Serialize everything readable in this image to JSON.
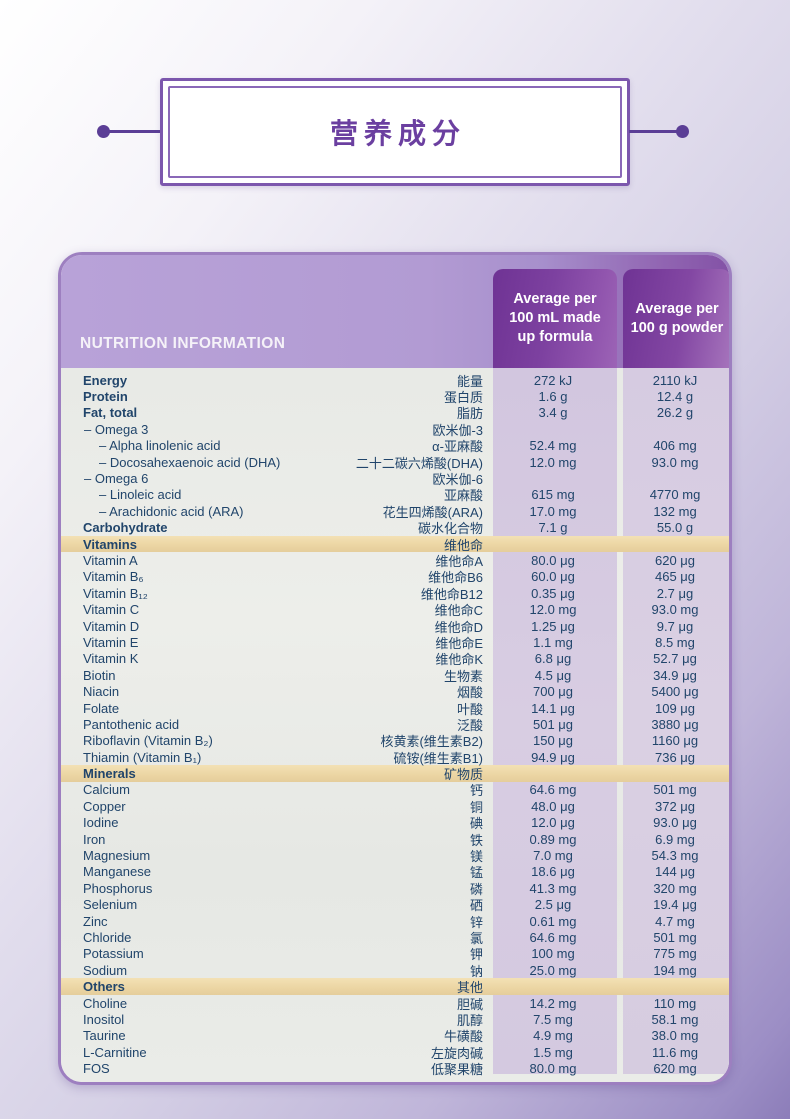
{
  "title": {
    "text": "营养成分"
  },
  "colors": {
    "accent_purple": "#6b3fa0",
    "connector_purple": "#5b3e96",
    "card_border": "#9d7fc0",
    "header_band": "#b29bd3",
    "header_cell": "#7d41a0",
    "section_band": "#ecd6a4",
    "value_strip": "#d5cae1",
    "body_bg": "#e9ebe7",
    "text_navy": "#21456b"
  },
  "table": {
    "header": {
      "title": "NUTRITION INFORMATION",
      "col_100ml": "Average per\n100 mL made\nup formula",
      "col_100g": "Average per\n100 g powder"
    },
    "rows": [
      {
        "type": "bold",
        "en": "Energy",
        "zh": "能量",
        "v1": "272 kJ",
        "v2": "2110 kJ"
      },
      {
        "type": "bold",
        "en": "Protein",
        "zh": "蛋白质",
        "v1": "1.6 g",
        "v2": "12.4 g"
      },
      {
        "type": "bold",
        "en": "Fat, total",
        "zh": "脂肪",
        "v1": "3.4 g",
        "v2": "26.2 g"
      },
      {
        "type": "sub1",
        "en": "– Omega 3",
        "zh": "欧米伽-3",
        "v1": "",
        "v2": ""
      },
      {
        "type": "sub2",
        "en": "– Alpha linolenic acid",
        "zh": "α-亚麻酸",
        "v1": "52.4 mg",
        "v2": "406 mg"
      },
      {
        "type": "sub2",
        "en": "– Docosahexaenoic acid (DHA)",
        "zh": "二十二碳六烯酸(DHA)",
        "v1": "12.0 mg",
        "v2": "93.0 mg"
      },
      {
        "type": "sub1",
        "en": "– Omega 6",
        "zh": "欧米伽-6",
        "v1": "",
        "v2": ""
      },
      {
        "type": "sub2",
        "en": "– Linoleic acid",
        "zh": "亚麻酸",
        "v1": "615 mg",
        "v2": "4770 mg"
      },
      {
        "type": "sub2",
        "en": "– Arachidonic acid (ARA)",
        "zh": "花生四烯酸(ARA)",
        "v1": "17.0 mg",
        "v2": "132 mg"
      },
      {
        "type": "bold",
        "en": "Carbohydrate",
        "zh": "碳水化合物",
        "v1": "7.1 g",
        "v2": "55.0 g"
      },
      {
        "type": "section",
        "en": "Vitamins",
        "zh": "维他命",
        "v1": "",
        "v2": ""
      },
      {
        "type": "item",
        "en": "Vitamin A",
        "zh": "维他命A",
        "v1": "80.0 μg",
        "v2": "620 μg"
      },
      {
        "type": "item",
        "en": "Vitamin B₆",
        "zh": "维他命B6",
        "v1": "60.0 μg",
        "v2": "465 μg"
      },
      {
        "type": "item",
        "en": "Vitamin B₁₂",
        "zh": "维他命B12",
        "v1": "0.35 μg",
        "v2": "2.7 μg"
      },
      {
        "type": "item",
        "en": "Vitamin C",
        "zh": "维他命C",
        "v1": "12.0 mg",
        "v2": "93.0 mg"
      },
      {
        "type": "item",
        "en": "Vitamin D",
        "zh": "维他命D",
        "v1": "1.25 μg",
        "v2": "9.7 μg"
      },
      {
        "type": "item",
        "en": "Vitamin E",
        "zh": "维他命E",
        "v1": "1.1 mg",
        "v2": "8.5 mg"
      },
      {
        "type": "item",
        "en": "Vitamin K",
        "zh": "维他命K",
        "v1": "6.8 μg",
        "v2": "52.7 μg"
      },
      {
        "type": "item",
        "en": "Biotin",
        "zh": "生物素",
        "v1": "4.5 μg",
        "v2": "34.9 μg"
      },
      {
        "type": "item",
        "en": "Niacin",
        "zh": "烟酸",
        "v1": "700 μg",
        "v2": "5400 μg"
      },
      {
        "type": "item",
        "en": "Folate",
        "zh": "叶酸",
        "v1": "14.1 μg",
        "v2": "109 μg"
      },
      {
        "type": "item",
        "en": "Pantothenic acid",
        "zh": "泛酸",
        "v1": "501 μg",
        "v2": "3880 μg"
      },
      {
        "type": "item",
        "en": "Riboflavin (Vitamin B₂)",
        "zh": "核黄素(维生素B2)",
        "v1": "150 μg",
        "v2": "1160 μg"
      },
      {
        "type": "item",
        "en": "Thiamin (Vitamin B₁)",
        "zh": "硫铵(维生素B1)",
        "v1": "94.9 μg",
        "v2": "736 μg"
      },
      {
        "type": "section",
        "en": "Minerals",
        "zh": "矿物质",
        "v1": "",
        "v2": ""
      },
      {
        "type": "item",
        "en": "Calcium",
        "zh": "钙",
        "v1": "64.6 mg",
        "v2": "501 mg"
      },
      {
        "type": "item",
        "en": "Copper",
        "zh": "铜",
        "v1": "48.0 μg",
        "v2": "372 μg"
      },
      {
        "type": "item",
        "en": "Iodine",
        "zh": "碘",
        "v1": "12.0 μg",
        "v2": "93.0 μg"
      },
      {
        "type": "item",
        "en": "Iron",
        "zh": "铁",
        "v1": "0.89 mg",
        "v2": "6.9 mg"
      },
      {
        "type": "item",
        "en": "Magnesium",
        "zh": "镁",
        "v1": "7.0 mg",
        "v2": "54.3 mg"
      },
      {
        "type": "item",
        "en": "Manganese",
        "zh": "锰",
        "v1": "18.6 μg",
        "v2": "144 μg"
      },
      {
        "type": "item",
        "en": "Phosphorus",
        "zh": "磷",
        "v1": "41.3 mg",
        "v2": "320 mg"
      },
      {
        "type": "item",
        "en": "Selenium",
        "zh": "硒",
        "v1": "2.5 μg",
        "v2": "19.4 μg"
      },
      {
        "type": "item",
        "en": "Zinc",
        "zh": "锌",
        "v1": "0.61 mg",
        "v2": "4.7 mg"
      },
      {
        "type": "item",
        "en": "Chloride",
        "zh": "氯",
        "v1": "64.6 mg",
        "v2": "501 mg"
      },
      {
        "type": "item",
        "en": "Potassium",
        "zh": "钾",
        "v1": "100 mg",
        "v2": "775 mg"
      },
      {
        "type": "item",
        "en": "Sodium",
        "zh": "钠",
        "v1": "25.0 mg",
        "v2": "194 mg"
      },
      {
        "type": "section",
        "en": "Others",
        "zh": "其他",
        "v1": "",
        "v2": ""
      },
      {
        "type": "item",
        "en": "Choline",
        "zh": "胆碱",
        "v1": "14.2 mg",
        "v2": "110 mg"
      },
      {
        "type": "item",
        "en": "Inositol",
        "zh": "肌醇",
        "v1": "7.5 mg",
        "v2": "58.1 mg"
      },
      {
        "type": "item",
        "en": "Taurine",
        "zh": "牛磺酸",
        "v1": "4.9 mg",
        "v2": "38.0 mg"
      },
      {
        "type": "item",
        "en": "L-Carnitine",
        "zh": "左旋肉碱",
        "v1": "1.5 mg",
        "v2": "11.6 mg"
      },
      {
        "type": "item",
        "en": "FOS",
        "zh": "低聚果糖",
        "v1": "80.0 mg",
        "v2": "620 mg"
      }
    ]
  }
}
